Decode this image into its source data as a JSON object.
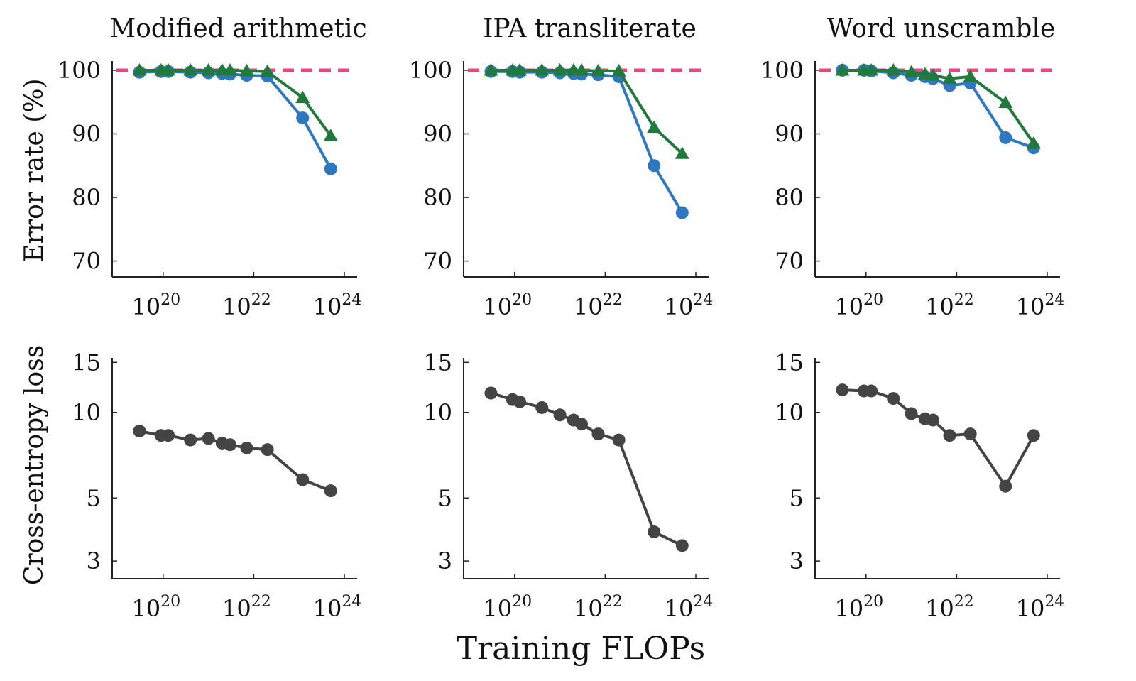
{
  "figure": {
    "row_ylabels": [
      "Error rate (%)",
      "Cross-entropy loss"
    ],
    "xlabel": "Training FLOPs",
    "x_tick_base": "10",
    "x_tick_exponents": [
      "20",
      "22",
      "24"
    ]
  },
  "chart_data": [
    {
      "type": "line",
      "title": "Modified arithmetic",
      "xscale": "log",
      "xlim": [
        1e+19,
        1e+24
      ],
      "ylim": [
        67.5,
        101
      ],
      "yticks": [
        70,
        80,
        90,
        100
      ],
      "dashed_line": {
        "y": 100,
        "color": "#e8467c"
      },
      "series": [
        {
          "color": "#2e78c2",
          "marker": "circle",
          "x": [
            3e+19,
            9e+19,
            1.3e+20,
            4e+20,
            1e+21,
            2e+21,
            3e+21,
            7e+21,
            2e+22,
            1.2e+23,
            5e+23
          ],
          "y": [
            99.7,
            99.8,
            99.8,
            99.7,
            99.6,
            99.5,
            99.4,
            99.2,
            99.1,
            92.5,
            84.5
          ]
        },
        {
          "color": "#217a3c",
          "marker": "triangle",
          "x": [
            3e+19,
            9e+19,
            1.3e+20,
            4e+20,
            1e+21,
            2e+21,
            3e+21,
            7e+21,
            2e+22,
            1.2e+23,
            5e+23
          ],
          "y": [
            100,
            100,
            100,
            100,
            100,
            100,
            100,
            99.9,
            99.8,
            95.7,
            89.7
          ]
        }
      ]
    },
    {
      "type": "line",
      "title": "IPA transliterate",
      "xscale": "log",
      "xlim": [
        1e+19,
        1e+24
      ],
      "ylim": [
        67.5,
        101
      ],
      "yticks": [
        70,
        80,
        90,
        100
      ],
      "dashed_line": {
        "y": 100,
        "color": "#e8467c"
      },
      "series": [
        {
          "color": "#2e78c2",
          "marker": "circle",
          "x": [
            3e+19,
            9e+19,
            1.3e+20,
            4e+20,
            1e+21,
            2e+21,
            3e+21,
            7e+21,
            2e+22,
            1.2e+23,
            5e+23
          ],
          "y": [
            99.8,
            99.8,
            99.7,
            99.7,
            99.6,
            99.5,
            99.4,
            99.3,
            99.0,
            85.0,
            77.6
          ]
        },
        {
          "color": "#217a3c",
          "marker": "triangle",
          "x": [
            3e+19,
            9e+19,
            1.3e+20,
            4e+20,
            1e+21,
            2e+21,
            3e+21,
            7e+21,
            2e+22,
            1.2e+23,
            5e+23
          ],
          "y": [
            100,
            100,
            100,
            100,
            100,
            100,
            100,
            99.9,
            99.9,
            91.0,
            86.9
          ]
        }
      ]
    },
    {
      "type": "line",
      "title": "Word unscramble",
      "xscale": "log",
      "xlim": [
        1e+19,
        1e+24
      ],
      "ylim": [
        67.5,
        101
      ],
      "yticks": [
        70,
        80,
        90,
        100
      ],
      "dashed_line": {
        "y": 100,
        "color": "#e8467c"
      },
      "series": [
        {
          "color": "#2e78c2",
          "marker": "circle",
          "x": [
            3e+19,
            9e+19,
            1.3e+20,
            4e+20,
            1e+21,
            2e+21,
            3e+21,
            7e+21,
            2e+22,
            1.2e+23,
            5e+23
          ],
          "y": [
            100,
            100,
            99.9,
            99.6,
            99.2,
            99.0,
            98.7,
            97.6,
            98.0,
            89.4,
            87.8
          ]
        },
        {
          "color": "#217a3c",
          "marker": "triangle",
          "x": [
            3e+19,
            9e+19,
            1.3e+20,
            4e+20,
            1e+21,
            2e+21,
            3e+21,
            7e+21,
            2e+22,
            1.2e+23,
            5e+23
          ],
          "y": [
            100,
            100,
            100,
            100,
            99.7,
            99.4,
            99.2,
            98.7,
            99.0,
            94.9,
            88.5
          ]
        }
      ]
    },
    {
      "type": "line",
      "xscale": "log",
      "yscale": "log",
      "xlim": [
        1e+19,
        1e+24
      ],
      "ylim": [
        2.6,
        15.2
      ],
      "yticks": [
        3,
        5,
        10,
        15
      ],
      "series": [
        {
          "color": "#444444",
          "marker": "circle",
          "x": [
            3e+19,
            9e+19,
            1.3e+20,
            4e+20,
            1e+21,
            2e+21,
            3e+21,
            7e+21,
            2e+22,
            1.2e+23,
            5e+23
          ],
          "y": [
            8.6,
            8.3,
            8.3,
            8.0,
            8.1,
            7.8,
            7.7,
            7.5,
            7.4,
            5.8,
            5.3
          ]
        }
      ]
    },
    {
      "type": "line",
      "xscale": "log",
      "yscale": "log",
      "xlim": [
        1e+19,
        1e+24
      ],
      "ylim": [
        2.6,
        15.2
      ],
      "yticks": [
        3,
        5,
        10,
        15
      ],
      "series": [
        {
          "color": "#444444",
          "marker": "circle",
          "x": [
            3e+19,
            9e+19,
            1.3e+20,
            4e+20,
            1e+21,
            2e+21,
            3e+21,
            7e+21,
            2e+22,
            1.2e+23,
            5e+23
          ],
          "y": [
            11.7,
            11.1,
            10.9,
            10.4,
            9.8,
            9.4,
            9.1,
            8.4,
            8.0,
            3.8,
            3.4
          ]
        }
      ]
    },
    {
      "type": "line",
      "xscale": "log",
      "yscale": "log",
      "xlim": [
        1e+19,
        1e+24
      ],
      "ylim": [
        2.6,
        15.2
      ],
      "yticks": [
        3,
        5,
        10,
        15
      ],
      "series": [
        {
          "color": "#444444",
          "marker": "circle",
          "x": [
            3e+19,
            9e+19,
            1.3e+20,
            4e+20,
            1e+21,
            2e+21,
            3e+21,
            7e+21,
            2e+22,
            1.2e+23,
            5e+23
          ],
          "y": [
            12.0,
            11.9,
            11.9,
            11.2,
            9.9,
            9.5,
            9.4,
            8.3,
            8.4,
            5.5,
            8.3
          ]
        }
      ]
    }
  ]
}
